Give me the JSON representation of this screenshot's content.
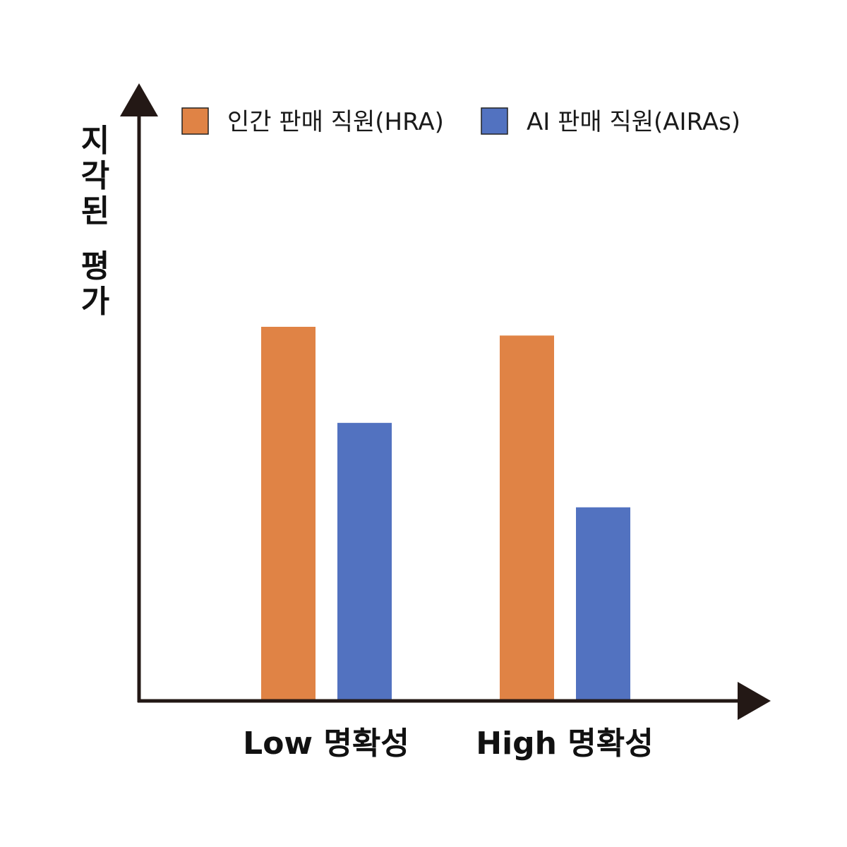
{
  "chart_data": {
    "type": "bar",
    "categories": [
      "Low 명확성",
      "High 명확성"
    ],
    "series": [
      {
        "name": "인간 판매 직원(HRA)",
        "values": [
          0.64,
          0.625
        ],
        "color": "#E08345"
      },
      {
        "name": "AI 판매 직원(AIRAs)",
        "values": [
          0.475,
          0.33
        ],
        "color": "#5272C0"
      }
    ],
    "ylabel": "지각된 평가",
    "xlabel": "",
    "ylim": [
      0,
      1
    ],
    "legend_position": "top",
    "grid": false,
    "axis_color": "#231815"
  }
}
